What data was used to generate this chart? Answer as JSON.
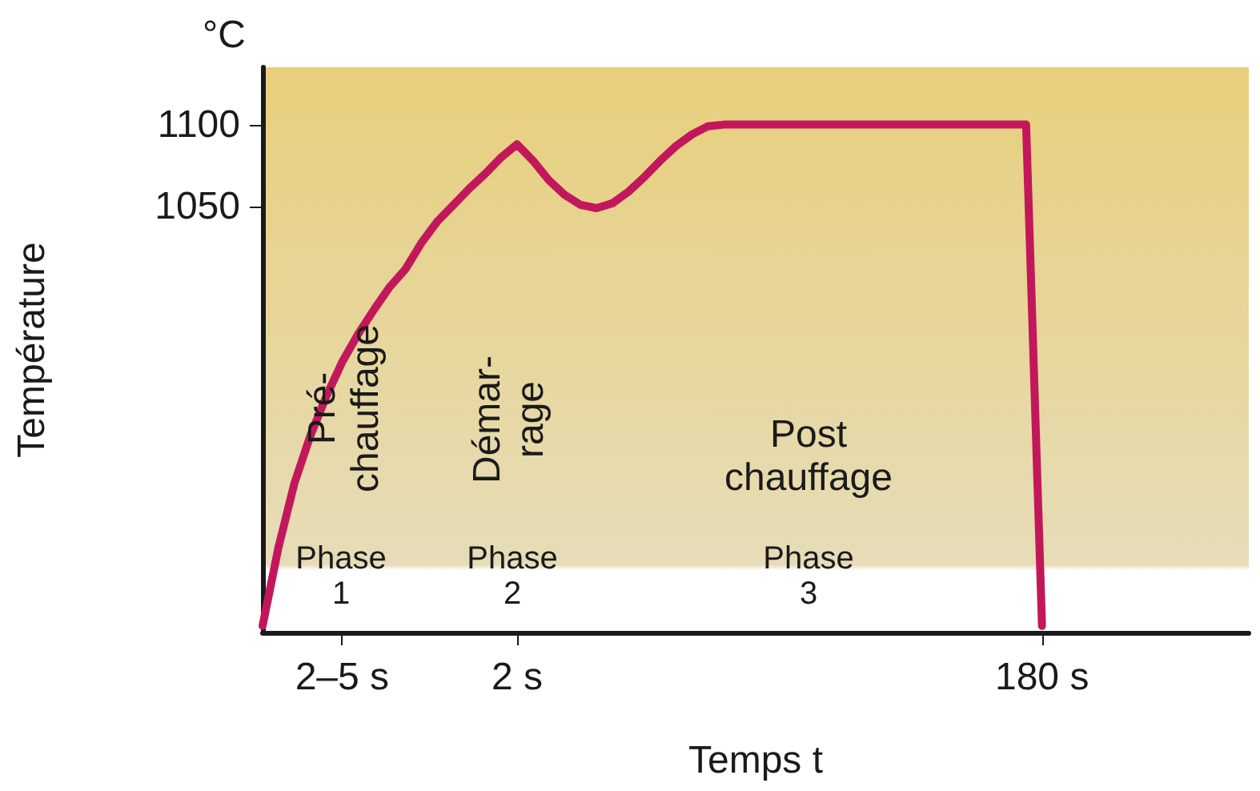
{
  "chart_data": {
    "type": "line",
    "xlabel": "Temps t",
    "ylabel": "Température",
    "categories": [
      null,
      null,
      null,
      null,
      null,
      "2–5 s",
      null,
      null,
      null,
      null,
      null,
      null,
      null,
      null,
      null,
      null,
      "2 s",
      null,
      null,
      null,
      null,
      null,
      null,
      null,
      null,
      null,
      null,
      null,
      null,
      null,
      null,
      null,
      null,
      null,
      null,
      null,
      null,
      null,
      null,
      null,
      null,
      null,
      null,
      null,
      null,
      null,
      null,
      null,
      null,
      "180 s",
      null,
      null,
      null,
      null,
      null,
      null,
      null,
      null,
      null,
      null,
      null,
      null,
      null
    ],
    "series": [
      {
        "color": "#c2185b",
        "values": [
          794,
          842,
          881,
          910,
          934,
          955,
          972,
          987,
          1001,
          1012,
          1028,
          1041,
          1051,
          1061,
          1070,
          1080,
          1088,
          1078,
          1066,
          1057,
          1051,
          1049,
          1052,
          1059,
          1068,
          1078,
          1087,
          1094,
          1099,
          1100,
          1100,
          1100,
          1100,
          1100,
          1100,
          1100,
          1100,
          1100,
          1100,
          1100,
          1100,
          1100,
          1100,
          1100,
          1100,
          1100,
          1100,
          1100,
          1100,
          794,
          null,
          null,
          null,
          null,
          null,
          null,
          null,
          null,
          null,
          null,
          null,
          null,
          null
        ]
      }
    ],
    "ylim": [
      790,
      1135
    ],
    "yticks": [
      1050,
      1100
    ],
    "annotations": [
      "°C",
      "Pré-\nchauffage",
      "Phase\n1",
      "Démar-\nrage",
      "Phase\n2",
      "Post\nchauffage",
      "Phase\n3"
    ],
    "grid": false,
    "marker": "none",
    "line_style": "solid"
  }
}
